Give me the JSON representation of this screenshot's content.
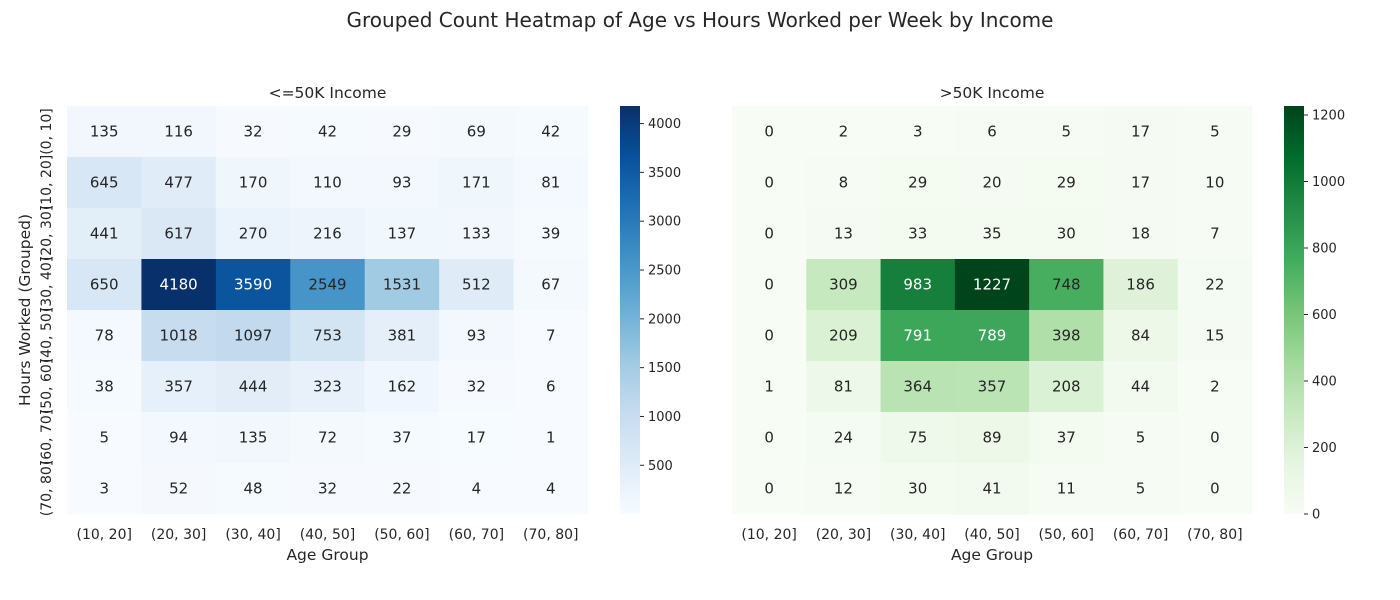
{
  "title": "Grouped Count Heatmap of Age vs Hours Worked per Week by Income",
  "chart_data": [
    {
      "type": "heatmap",
      "title": "<=50K Income",
      "xlabel": "Age Group",
      "ylabel": "Hours Worked (Grouped)",
      "x_categories": [
        "(10, 20]",
        "(20, 30]",
        "(30, 40]",
        "(40, 50]",
        "(50, 60]",
        "(60, 70]",
        "(70, 80]"
      ],
      "y_categories": [
        "(0, 10]",
        "(10, 20]",
        "(20, 30]",
        "(30, 40]",
        "(40, 50]",
        "(50, 60]",
        "(60, 70]",
        "(70, 80]"
      ],
      "values": [
        [
          135,
          116,
          32,
          42,
          29,
          69,
          42
        ],
        [
          645,
          477,
          170,
          110,
          93,
          171,
          81
        ],
        [
          441,
          617,
          270,
          216,
          137,
          133,
          39
        ],
        [
          650,
          4180,
          3590,
          2549,
          1531,
          512,
          67
        ],
        [
          78,
          1018,
          1097,
          753,
          381,
          93,
          7
        ],
        [
          38,
          357,
          444,
          323,
          162,
          32,
          6
        ],
        [
          5,
          94,
          135,
          72,
          37,
          17,
          1
        ],
        [
          3,
          52,
          48,
          32,
          22,
          4,
          4
        ]
      ],
      "colormap": "Blues",
      "colors": {
        "low": "#f7fbff",
        "high": "#08306b"
      },
      "colorbar": {
        "min": 1,
        "max": 4180,
        "ticks": [
          500,
          1000,
          1500,
          2000,
          2500,
          3000,
          3500,
          4000
        ]
      }
    },
    {
      "type": "heatmap",
      "title": ">50K Income",
      "xlabel": "Age Group",
      "ylabel": "",
      "x_categories": [
        "(10, 20]",
        "(20, 30]",
        "(30, 40]",
        "(40, 50]",
        "(50, 60]",
        "(60, 70]",
        "(70, 80]"
      ],
      "y_categories": [],
      "values": [
        [
          0,
          2,
          3,
          6,
          5,
          17,
          5
        ],
        [
          0,
          8,
          29,
          20,
          29,
          17,
          10
        ],
        [
          0,
          13,
          33,
          35,
          30,
          18,
          7
        ],
        [
          0,
          309,
          983,
          1227,
          748,
          186,
          22
        ],
        [
          0,
          209,
          791,
          789,
          398,
          84,
          15
        ],
        [
          1,
          81,
          364,
          357,
          208,
          44,
          2
        ],
        [
          0,
          24,
          75,
          89,
          37,
          5,
          0
        ],
        [
          0,
          12,
          30,
          41,
          11,
          5,
          0
        ]
      ],
      "colormap": "Greens",
      "colors": {
        "low": "#f7fcf5",
        "high": "#00441b"
      },
      "colorbar": {
        "min": 0,
        "max": 1227,
        "ticks": [
          0,
          200,
          400,
          600,
          800,
          1000,
          1200
        ]
      }
    }
  ]
}
